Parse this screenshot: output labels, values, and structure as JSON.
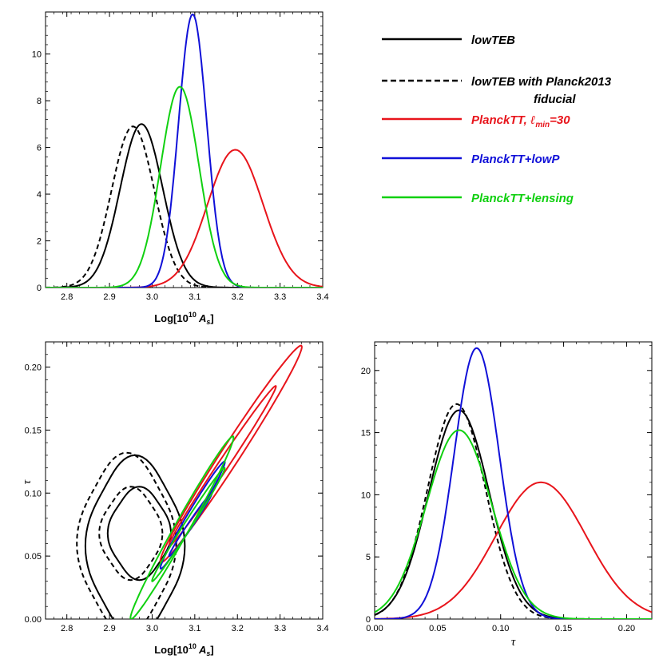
{
  "chart_data": [
    {
      "type": "line",
      "panel": "top-left",
      "title": "",
      "xlabel": "Log[10^10 A_s]",
      "xlabel_parts": {
        "pre": "Log[10",
        "sup": "10",
        "var": "A",
        "sub": "s",
        "post": "]"
      },
      "ylabel": "",
      "xlim": [
        2.75,
        3.4
      ],
      "ylim": [
        0,
        11.8
      ],
      "xticks": [
        "2.8",
        "2.9",
        "3.0",
        "3.1",
        "3.2",
        "3.3",
        "3.4"
      ],
      "yticks": [
        "0",
        "2",
        "4",
        "6",
        "8",
        "10"
      ],
      "series": [
        {
          "name": "lowTEB",
          "color": "#000000",
          "dash": "solid",
          "peak_x": 2.975,
          "peak_y": 7.0,
          "sigma_left": 0.05,
          "sigma_right": 0.05
        },
        {
          "name": "lowTEB with Planck2013 fiducial",
          "color": "#000000",
          "dash": "dashed",
          "peak_x": 2.955,
          "peak_y": 6.9,
          "sigma_left": 0.05,
          "sigma_right": 0.05
        },
        {
          "name": "PlanckTT, l_min=30",
          "color": "#e8141b",
          "dash": "solid",
          "peak_x": 3.195,
          "peak_y": 5.9,
          "sigma_left": 0.065,
          "sigma_right": 0.065
        },
        {
          "name": "PlanckTT+lowP",
          "color": "#1010d8",
          "dash": "solid",
          "peak_x": 3.095,
          "peak_y": 11.7,
          "sigma_left": 0.033,
          "sigma_right": 0.033
        },
        {
          "name": "PlanckTT+lensing",
          "color": "#10d010",
          "dash": "solid",
          "peak_x": 3.065,
          "peak_y": 8.6,
          "sigma_left": 0.045,
          "sigma_right": 0.045
        }
      ]
    },
    {
      "type": "contour",
      "panel": "bottom-left",
      "title": "",
      "xlabel": "Log[10^10 A_s]",
      "xlabel_parts": {
        "pre": "Log[10",
        "sup": "10",
        "var": "A",
        "sub": "s",
        "post": "]"
      },
      "ylabel": "τ",
      "xlim": [
        2.75,
        3.4
      ],
      "ylim": [
        0,
        0.22
      ],
      "xticks": [
        "2.8",
        "2.9",
        "3.0",
        "3.1",
        "3.2",
        "3.3",
        "3.4"
      ],
      "yticks": [
        "0.00",
        "0.05",
        "0.10",
        "0.15",
        "0.20"
      ],
      "series": [
        {
          "name": "lowTEB",
          "color": "#000000",
          "dash": "solid",
          "contours": [
            {
              "level": "68%",
              "cx": 2.97,
              "cy": 0.068,
              "rx": 0.07,
              "ry": 0.035,
              "angle_deg": 0
            },
            {
              "level": "95%",
              "cx": 2.96,
              "cy": 0.058,
              "rx": 0.11,
              "ry": 0.068,
              "angle_deg": 0
            }
          ]
        },
        {
          "name": "lowTEB with Planck2013 fiducial",
          "color": "#000000",
          "dash": "dashed",
          "contours": [
            {
              "level": "68%",
              "cx": 2.95,
              "cy": 0.068,
              "rx": 0.07,
              "ry": 0.035,
              "angle_deg": 0
            },
            {
              "level": "95%",
              "cx": 2.94,
              "cy": 0.06,
              "rx": 0.11,
              "ry": 0.068,
              "angle_deg": 0
            }
          ]
        },
        {
          "name": "PlanckTT, l_min=30",
          "color": "#e8141b",
          "dash": "solid",
          "contours": [
            {
              "level": "68%",
              "x0": 3.04,
              "y0": 0.058,
              "x1": 3.29,
              "y1": 0.185,
              "width": 0.012
            },
            {
              "level": "95%",
              "x0": 3.02,
              "y0": 0.045,
              "x1": 3.35,
              "y1": 0.217,
              "width": 0.022
            }
          ]
        },
        {
          "name": "PlanckTT+lowP",
          "color": "#1010d8",
          "dash": "solid",
          "contours": [
            {
              "level": "68%",
              "x0": 3.04,
              "y0": 0.05,
              "x1": 3.14,
              "y1": 0.1,
              "width": 0.006
            },
            {
              "level": "95%",
              "x0": 3.02,
              "y0": 0.04,
              "x1": 3.17,
              "y1": 0.125,
              "width": 0.011
            }
          ]
        },
        {
          "name": "PlanckTT+lensing",
          "color": "#10d010",
          "dash": "solid",
          "contours": [
            {
              "level": "68%",
              "x0": 3.0,
              "y0": 0.03,
              "x1": 3.17,
              "y1": 0.12,
              "width": 0.009
            },
            {
              "level": "95%",
              "x0": 2.95,
              "y0": 0.0,
              "x1": 3.19,
              "y1": 0.145,
              "width": 0.017
            }
          ]
        }
      ]
    },
    {
      "type": "line",
      "panel": "bottom-right",
      "title": "",
      "xlabel": "τ",
      "ylabel": "",
      "xlim": [
        0.0,
        0.22
      ],
      "ylim": [
        0,
        22.3
      ],
      "xticks": [
        "0.00",
        "0.05",
        "0.10",
        "0.15",
        "0.20"
      ],
      "yticks": [
        "0",
        "5",
        "10",
        "15",
        "20"
      ],
      "series": [
        {
          "name": "lowTEB",
          "color": "#000000",
          "dash": "solid",
          "peak_x": 0.067,
          "peak_y": 16.8,
          "sigma_left": 0.024,
          "sigma_right": 0.024
        },
        {
          "name": "lowTEB with Planck2013 fiducial",
          "color": "#000000",
          "dash": "dashed",
          "peak_x": 0.065,
          "peak_y": 17.3,
          "sigma_left": 0.023,
          "sigma_right": 0.023
        },
        {
          "name": "PlanckTT, l_min=30",
          "color": "#e8141b",
          "dash": "solid",
          "peak_x": 0.132,
          "peak_y": 11.0,
          "sigma_left": 0.036,
          "sigma_right": 0.036
        },
        {
          "name": "PlanckTT+lowP",
          "color": "#1010d8",
          "dash": "solid",
          "peak_x": 0.081,
          "peak_y": 21.8,
          "sigma_left": 0.018,
          "sigma_right": 0.018
        },
        {
          "name": "PlanckTT+lensing",
          "color": "#10d010",
          "dash": "solid",
          "peak_x": 0.067,
          "peak_y": 15.2,
          "sigma_left": 0.026,
          "sigma_right": 0.026
        }
      ]
    }
  ],
  "legend": {
    "placement": "top-right",
    "entries": [
      {
        "label": "lowTEB",
        "color": "#000000",
        "dash": "solid"
      },
      {
        "label": "lowTEB with Planck2013",
        "label2": "fiducial",
        "color": "#000000",
        "dash": "dashed"
      },
      {
        "label": "PlanckTT, ",
        "math": "ℓ",
        "sub": "min",
        "tail": "=30",
        "color": "#e8141b",
        "dash": "solid"
      },
      {
        "label": "PlanckTT+lowP",
        "color": "#1010d8",
        "dash": "solid"
      },
      {
        "label": "PlanckTT+lensing",
        "color": "#10d010",
        "dash": "solid"
      }
    ]
  }
}
